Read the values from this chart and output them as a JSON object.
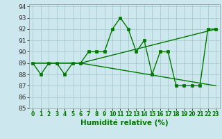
{
  "xlabel": "Humidité relative (%)",
  "xlim": [
    -0.5,
    23.5
  ],
  "ylim": [
    85,
    94.2
  ],
  "yticks": [
    85,
    86,
    87,
    88,
    89,
    90,
    91,
    92,
    93,
    94
  ],
  "xticks": [
    0,
    1,
    2,
    3,
    4,
    5,
    6,
    7,
    8,
    9,
    10,
    11,
    12,
    13,
    14,
    15,
    16,
    17,
    18,
    19,
    20,
    21,
    22,
    23
  ],
  "bg_color": "#cce8ee",
  "grid_color": "#aacccc",
  "line_color": "#007700",
  "line1_x": [
    0,
    1,
    2,
    3,
    4,
    5,
    6,
    7,
    8,
    9,
    10,
    11,
    12,
    13,
    14,
    15,
    16,
    17,
    18,
    19,
    20,
    21,
    22,
    23
  ],
  "line1_y": [
    89,
    88,
    89,
    89,
    88,
    89,
    89,
    90,
    90,
    90,
    92,
    93,
    92,
    90,
    91,
    88,
    90,
    90,
    87,
    87,
    87,
    87,
    92,
    92
  ],
  "line2_x": [
    0,
    6,
    23
  ],
  "line2_y": [
    89,
    89,
    92
  ],
  "line3_x": [
    0,
    6,
    23
  ],
  "line3_y": [
    89,
    89,
    87
  ],
  "markersize": 2.5,
  "linewidth": 1.0,
  "xlabel_fontsize": 7.5,
  "xtick_fontsize": 5.5,
  "ytick_fontsize": 6.5
}
